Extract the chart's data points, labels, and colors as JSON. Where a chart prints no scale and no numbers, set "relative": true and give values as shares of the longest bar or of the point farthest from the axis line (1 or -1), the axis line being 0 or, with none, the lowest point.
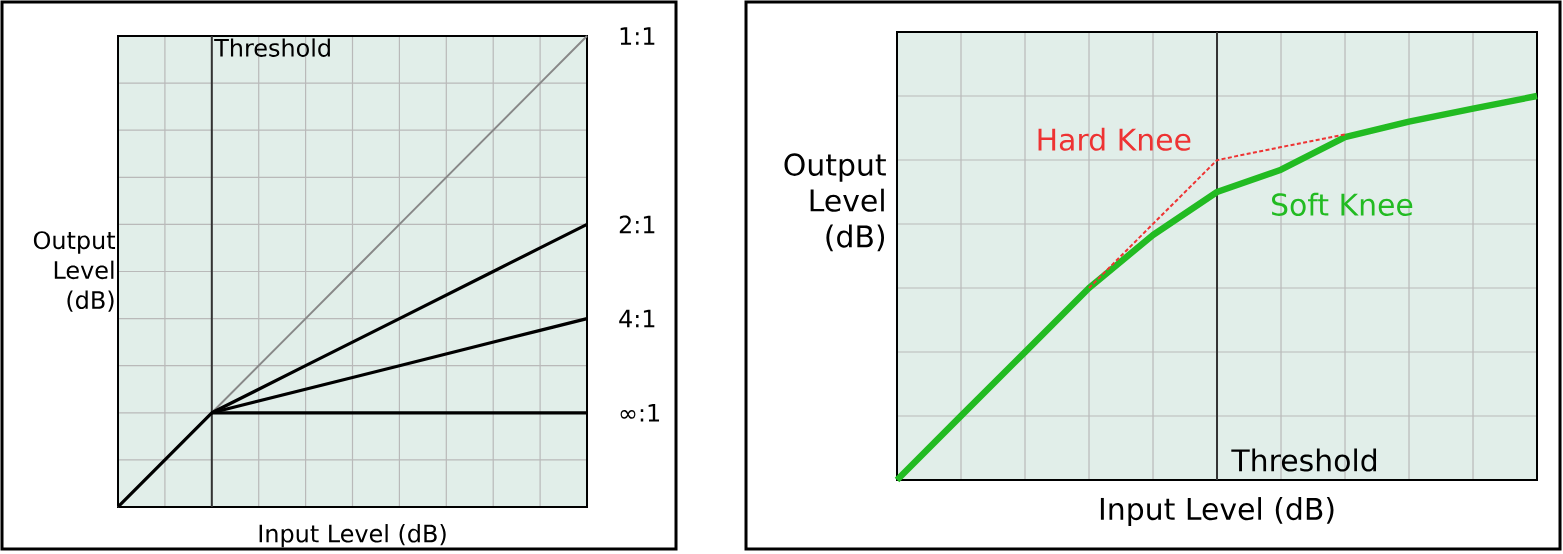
{
  "chart_data": [
    {
      "type": "line",
      "relative": true,
      "xlabel": "Input Level (dB)",
      "ylabel": "Output Level (dB)",
      "categories": [
        null,
        null,
        null,
        null,
        null,
        null,
        null,
        null,
        null,
        null,
        null
      ],
      "series": [
        {
          "name": "1:1",
          "color": "#888888",
          "values": [
            0,
            0.1,
            0.2,
            0.3,
            0.4,
            0.5,
            0.6,
            0.7,
            0.8,
            0.9,
            1.0
          ]
        },
        {
          "name": "2:1",
          "color": "#000000",
          "values": [
            null,
            null,
            0.2,
            0.25,
            0.3,
            0.35,
            0.4,
            0.45,
            0.5,
            0.55,
            0.6
          ]
        },
        {
          "name": "4:1",
          "color": "#000000",
          "values": [
            null,
            null,
            0.2,
            0.225,
            0.25,
            0.275,
            0.3,
            0.325,
            0.35,
            0.375,
            0.4
          ]
        },
        {
          "name": "∞:1",
          "color": "#000000",
          "values": [
            0,
            0.1,
            0.2,
            0.2,
            0.2,
            0.2,
            0.2,
            0.2,
            0.2,
            0.2,
            0.2
          ]
        }
      ],
      "annotations": [
        "Threshold"
      ],
      "grid": true,
      "tick_labels": false
    },
    {
      "type": "line",
      "relative": true,
      "xlabel": "Input Level (dB)",
      "ylabel": "Output Level (dB)",
      "categories": [
        null,
        null,
        null,
        null,
        null,
        null,
        null,
        null,
        null,
        null,
        null
      ],
      "series": [
        {
          "name": "Soft Knee",
          "color": "#22bb22",
          "values": [
            0,
            0.167,
            0.333,
            0.5,
            0.638,
            0.75,
            0.808,
            0.893,
            0.933,
            0.967,
            1
          ]
        },
        {
          "name": "Hard Knee",
          "color": "#ee3333",
          "line_style": "dotted",
          "values": [
            null,
            null,
            null,
            0.5,
            0.667,
            0.833,
            0.867,
            0.9,
            null,
            null,
            null
          ]
        }
      ],
      "annotations": [
        "Threshold"
      ],
      "grid": true,
      "tick_labels": false
    }
  ]
}
